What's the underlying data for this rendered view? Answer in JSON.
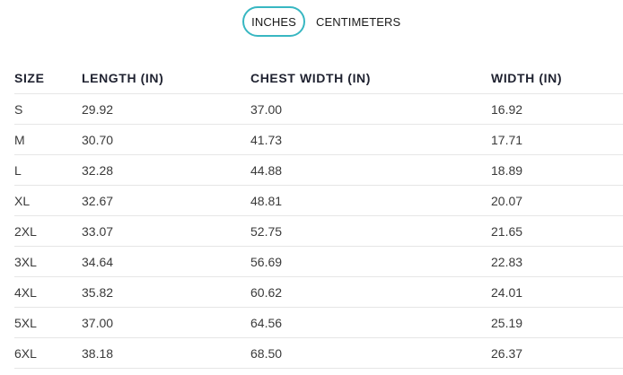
{
  "unit_toggle": {
    "options": [
      "INCHES",
      "CENTIMETERS"
    ],
    "selected": "INCHES"
  },
  "table": {
    "headers": [
      "SIZE",
      "LENGTH (IN)",
      "CHEST WIDTH (IN)",
      "WIDTH (IN)"
    ],
    "rows": [
      [
        "S",
        "29.92",
        "37.00",
        "16.92"
      ],
      [
        "M",
        "30.70",
        "41.73",
        "17.71"
      ],
      [
        "L",
        "32.28",
        "44.88",
        "18.89"
      ],
      [
        "XL",
        "32.67",
        "48.81",
        "20.07"
      ],
      [
        "2XL",
        "33.07",
        "52.75",
        "21.65"
      ],
      [
        "3XL",
        "34.64",
        "56.69",
        "22.83"
      ],
      [
        "4XL",
        "35.82",
        "60.62",
        "24.01"
      ],
      [
        "5XL",
        "37.00",
        "64.56",
        "25.19"
      ],
      [
        "6XL",
        "38.18",
        "68.50",
        "26.37"
      ]
    ]
  },
  "colors": {
    "accent": "#38b7c2",
    "divider": "#e6e6e6",
    "header_text": "#1f2230",
    "cell_text": "#3a3a3a"
  }
}
